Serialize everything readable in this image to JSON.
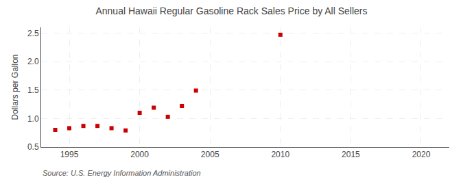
{
  "chart_data": {
    "type": "scatter",
    "title": "Annual Hawaii Regular Gasoline Rack Sales Price by All Sellers",
    "ylabel": "Dollars per Gallon",
    "annotations": [
      "Source: U.S. Energy Information Administration"
    ],
    "x": [
      1994,
      1995,
      1996,
      1997,
      1998,
      1999,
      2000,
      2001,
      2002,
      2003,
      2004,
      2010
    ],
    "values": [
      0.8,
      0.83,
      0.87,
      0.87,
      0.83,
      0.79,
      1.1,
      1.19,
      1.03,
      1.22,
      1.49,
      2.47
    ],
    "color": "#cc0000",
    "marker": "square",
    "xlim": [
      1993,
      2022
    ],
    "ylim": [
      0.5,
      2.6
    ],
    "xticks": [
      1995,
      2000,
      2005,
      2010,
      2015,
      2020
    ],
    "yticks": [
      0.5,
      {
        "value": 1,
        "label": "1.0"
      },
      1.5,
      {
        "value": 2,
        "label": "2.0"
      },
      2.5
    ],
    "grid": true
  }
}
